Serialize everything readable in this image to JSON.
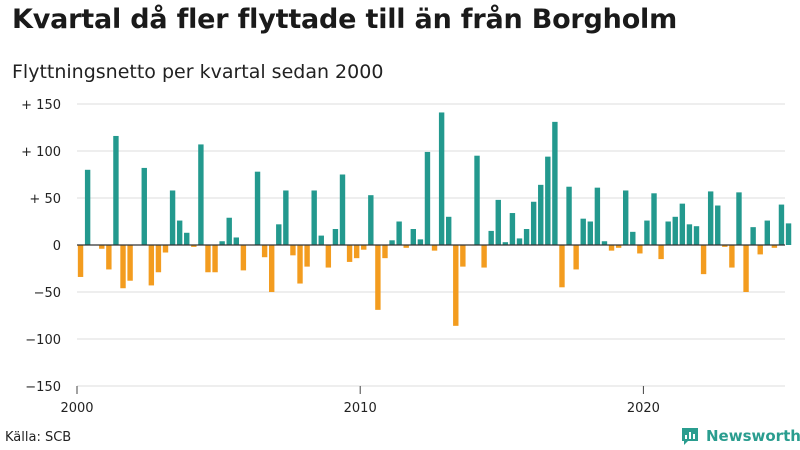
{
  "header": {
    "title": "Kvartal då fler flyttade till än från Borgholm",
    "subtitle": "Flyttningsnetto per kvartal sedan 2000"
  },
  "footer": {
    "source": "Källa: SCB",
    "brand": "Newsworthy"
  },
  "colors": {
    "positive": "#23998e",
    "negative": "#f39c1f",
    "grid": "#dddddd",
    "zero_line": "#333333",
    "brand": "#2a9d8f"
  },
  "icons": {
    "brand_logo": "chat-bubble-bar-chart-icon"
  },
  "chart_data": {
    "type": "bar",
    "title": "Kvartal då fler flyttade till än från Borgholm",
    "subtitle": "Flyttningsnetto per kvartal sedan 2000",
    "xlabel": "",
    "ylabel": "",
    "ylim": [
      -150,
      150
    ],
    "yticks": [
      150,
      100,
      50,
      0,
      -50,
      -100,
      -150
    ],
    "ytick_labels": [
      "+ 150",
      "+ 100",
      "+  50",
      "0",
      "−50",
      "−100",
      "−150"
    ],
    "xticks": [
      2000,
      2010,
      2020
    ],
    "xtick_labels": [
      "2000",
      "2010",
      "2020"
    ],
    "grid": "horizontal",
    "start_year": 2000,
    "periods_per_year": 4,
    "values": [
      -34,
      80,
      0,
      -4,
      -26,
      116,
      -46,
      -38,
      0,
      82,
      -43,
      -29,
      -8,
      58,
      26,
      13,
      -2,
      107,
      -29,
      -29,
      4,
      29,
      8,
      -27,
      0,
      78,
      -13,
      -50,
      22,
      58,
      -11,
      -41,
      -23,
      58,
      10,
      -24,
      17,
      75,
      -18,
      -14,
      -5,
      53,
      -69,
      -14,
      5,
      25,
      -3,
      17,
      6,
      99,
      -6,
      141,
      30,
      -86,
      -23,
      0,
      95,
      -24,
      15,
      48,
      3,
      34,
      7,
      17,
      46,
      64,
      94,
      131,
      -45,
      62,
      -26,
      28,
      25,
      61,
      4,
      -6,
      -3,
      58,
      14,
      -9,
      26,
      55,
      -15,
      25,
      30,
      44,
      22,
      20,
      -31,
      57,
      42,
      -2,
      -24,
      56,
      -50,
      19,
      -10,
      26,
      -3,
      43,
      23
    ]
  }
}
